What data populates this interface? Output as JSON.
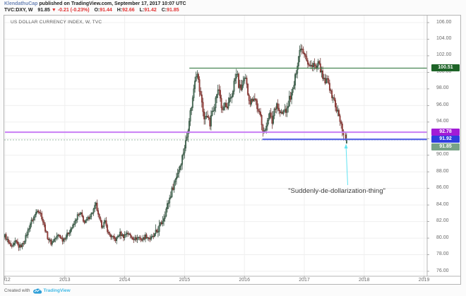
{
  "header": {
    "author": "KlendathuCap",
    "published": "published on TradingView.com, September 17, 2017 10:07 UTC",
    "symbol": {
      "name": "TVC:DXY, W",
      "last": "91.85",
      "arrow": "▼",
      "change": "-0.21 (-0.23%)",
      "open_label": "O:",
      "open_value": "91.44",
      "high_label": "H:",
      "high_value": "92.66",
      "low_label": "L:",
      "low_value": "91.42",
      "close_label": "C:",
      "close_value": "91.85"
    }
  },
  "chart": {
    "title": "US DOLLAR CURRENCY INDEX, W, TVC"
  },
  "price_axis": {
    "ticks": [
      106,
      104,
      102,
      100,
      98,
      96,
      94,
      92,
      90,
      88,
      86,
      84,
      82,
      80,
      78,
      76
    ]
  },
  "time_axis": {
    "years": [
      "2012",
      "2013",
      "2014",
      "2015",
      "2016",
      "2017",
      "2018",
      "2019"
    ]
  },
  "footer": {
    "created_with": "Created with",
    "brand": "TradingView",
    "logo_icon": "tradingview-cloud-icon"
  },
  "chart_data": {
    "type": "candlestick",
    "title": "US DOLLAR CURRENCY INDEX, W, TVC",
    "symbol": "TVC:DXY",
    "timeframe": "W",
    "x_range": [
      2012.0,
      2019.1
    ],
    "ylim": [
      75.4,
      106.9
    ],
    "grid": true,
    "colors": {
      "up_body": "#527a62",
      "up_border": "#1c3a28",
      "down_body": "#a8433e",
      "down_border": "#5e1f1c",
      "grid": "#efefef",
      "axis_text": "#6b6b6b"
    },
    "levels": [
      {
        "name": "green-resistance-ray",
        "value": 100.51,
        "label": "100.51",
        "start_year": 2015.08,
        "line_color": "#3a7d46",
        "badge_color": "#1e6428",
        "width": 1.2
      },
      {
        "name": "purple-support-line",
        "value": 92.78,
        "label": "92.78",
        "start_year": 2012.0,
        "line_color": "#c87ef5",
        "badge_color": "#a21cd6",
        "width": 2
      },
      {
        "name": "blue-support-ray",
        "value": 91.92,
        "label": "91.92",
        "start_year": 2016.3,
        "line_color": "#4f5ce8",
        "badge_color": "#2f3ede",
        "width": 2
      }
    ],
    "last_price": {
      "value": 91.85,
      "label": "91.85",
      "badge_color": "#78a287",
      "line_color": "#7da68c",
      "line_style": "dashed"
    },
    "last_candle": {
      "open": 91.44,
      "high": 92.66,
      "low": 91.42,
      "close": 91.85,
      "prev_close": 92.06
    },
    "annotation": {
      "text": "\"Suddenly-de-dollarization-thing\"",
      "arrow_color": "#5fe3f2",
      "points_to_year": 2017.706,
      "points_to_price": 91.42
    },
    "weekly_close_anchors": [
      [
        2012.0,
        80.3
      ],
      [
        2012.06,
        79.4
      ],
      [
        2012.12,
        78.8
      ],
      [
        2012.18,
        79.6
      ],
      [
        2012.24,
        78.9
      ],
      [
        2012.3,
        79.3
      ],
      [
        2012.37,
        80.6
      ],
      [
        2012.43,
        81.9
      ],
      [
        2012.49,
        82.6
      ],
      [
        2012.54,
        83.5
      ],
      [
        2012.6,
        82.9
      ],
      [
        2012.65,
        81.6
      ],
      [
        2012.71,
        80.1
      ],
      [
        2012.77,
        79.4
      ],
      [
        2012.83,
        79.9
      ],
      [
        2012.9,
        80.4
      ],
      [
        2012.96,
        79.8
      ],
      [
        2013.02,
        80.2
      ],
      [
        2013.08,
        80.9
      ],
      [
        2013.15,
        81.6
      ],
      [
        2013.21,
        82.7
      ],
      [
        2013.27,
        82.9
      ],
      [
        2013.33,
        81.8
      ],
      [
        2013.4,
        82.5
      ],
      [
        2013.46,
        83.1
      ],
      [
        2013.52,
        84.1
      ],
      [
        2013.56,
        82.6
      ],
      [
        2013.62,
        81.4
      ],
      [
        2013.67,
        82.0
      ],
      [
        2013.73,
        80.5
      ],
      [
        2013.79,
        80.1
      ],
      [
        2013.85,
        79.8
      ],
      [
        2013.92,
        80.6
      ],
      [
        2013.98,
        80.2
      ],
      [
        2014.04,
        80.7
      ],
      [
        2014.1,
        80.2
      ],
      [
        2014.17,
        79.9
      ],
      [
        2014.23,
        80.1
      ],
      [
        2014.29,
        79.8
      ],
      [
        2014.35,
        80.3
      ],
      [
        2014.42,
        79.9
      ],
      [
        2014.48,
        80.2
      ],
      [
        2014.54,
        80.8
      ],
      [
        2014.6,
        81.6
      ],
      [
        2014.65,
        82.5
      ],
      [
        2014.71,
        83.9
      ],
      [
        2014.77,
        85.3
      ],
      [
        2014.83,
        86.8
      ],
      [
        2014.88,
        87.8
      ],
      [
        2014.94,
        89.2
      ],
      [
        2015.0,
        91.0
      ],
      [
        2015.04,
        92.3
      ],
      [
        2015.08,
        94.6
      ],
      [
        2015.13,
        96.5
      ],
      [
        2015.17,
        99.2
      ],
      [
        2015.21,
        100.2
      ],
      [
        2015.25,
        97.8
      ],
      [
        2015.29,
        96.4
      ],
      [
        2015.33,
        94.2
      ],
      [
        2015.38,
        95.1
      ],
      [
        2015.42,
        93.5
      ],
      [
        2015.46,
        95.3
      ],
      [
        2015.5,
        96.1
      ],
      [
        2015.54,
        97.5
      ],
      [
        2015.58,
        97.9
      ],
      [
        2015.63,
        95.0
      ],
      [
        2015.67,
        96.3
      ],
      [
        2015.71,
        95.4
      ],
      [
        2015.75,
        96.6
      ],
      [
        2015.79,
        97.2
      ],
      [
        2015.83,
        98.9
      ],
      [
        2015.88,
        100.0
      ],
      [
        2015.9,
        98.4
      ],
      [
        2015.94,
        98.0
      ],
      [
        2015.98,
        98.8
      ],
      [
        2016.02,
        99.1
      ],
      [
        2016.06,
        97.4
      ],
      [
        2016.1,
        96.3
      ],
      [
        2016.15,
        97.1
      ],
      [
        2016.19,
        96.6
      ],
      [
        2016.23,
        95.1
      ],
      [
        2016.27,
        94.7
      ],
      [
        2016.31,
        93.1
      ],
      [
        2016.35,
        92.7
      ],
      [
        2016.38,
        94.4
      ],
      [
        2016.42,
        95.0
      ],
      [
        2016.46,
        93.9
      ],
      [
        2016.5,
        95.6
      ],
      [
        2016.54,
        96.3
      ],
      [
        2016.58,
        95.2
      ],
      [
        2016.63,
        94.9
      ],
      [
        2016.67,
        95.5
      ],
      [
        2016.71,
        95.3
      ],
      [
        2016.75,
        96.9
      ],
      [
        2016.79,
        97.3
      ],
      [
        2016.83,
        98.6
      ],
      [
        2016.88,
        100.9
      ],
      [
        2016.9,
        101.8
      ],
      [
        2016.94,
        103.2
      ],
      [
        2016.98,
        102.6
      ],
      [
        2017.02,
        102.2
      ],
      [
        2017.06,
        100.9
      ],
      [
        2017.1,
        100.6
      ],
      [
        2017.15,
        101.2
      ],
      [
        2017.19,
        100.3
      ],
      [
        2017.23,
        101.0
      ],
      [
        2017.27,
        100.4
      ],
      [
        2017.31,
        99.1
      ],
      [
        2017.35,
        98.8
      ],
      [
        2017.4,
        99.2
      ],
      [
        2017.44,
        97.4
      ],
      [
        2017.48,
        97.1
      ],
      [
        2017.52,
        95.8
      ],
      [
        2017.56,
        95.2
      ],
      [
        2017.6,
        93.9
      ],
      [
        2017.63,
        93.3
      ],
      [
        2017.65,
        92.6
      ],
      [
        2017.67,
        93.2
      ],
      [
        2017.69,
        92.06
      ],
      [
        2017.706,
        91.85
      ]
    ]
  }
}
